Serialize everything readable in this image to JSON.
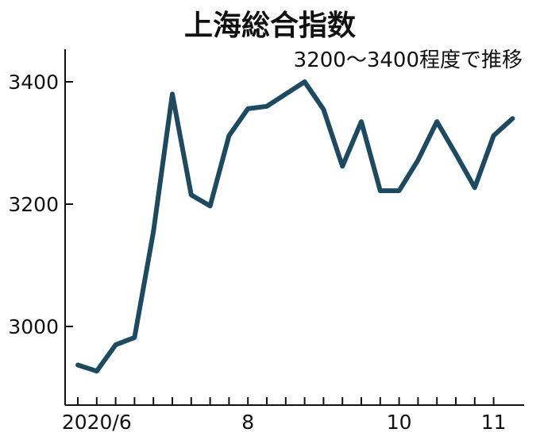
{
  "chart_data": {
    "type": "line",
    "title": "上海総合指数",
    "subtitle": "3200～3400程度で推移",
    "ylim": [
      2880,
      3440
    ],
    "yticks": [
      3000,
      3200,
      3400
    ],
    "ytick_labels": [
      "3000",
      "3200",
      "3400"
    ],
    "xtick_labels": [
      {
        "label": "2020/6",
        "index": 1
      },
      {
        "label": "8",
        "index": 9
      },
      {
        "label": "10",
        "index": 17
      },
      {
        "label": "11",
        "index": 22
      }
    ],
    "minor_tick_indices": [
      0,
      1,
      2,
      3,
      4,
      5,
      6,
      7,
      8,
      9,
      10,
      11,
      12,
      13,
      14,
      15,
      16,
      17,
      18,
      19,
      20,
      21,
      22
    ],
    "grid": false,
    "line_color": "#1c4a60",
    "series": [
      {
        "values": [
          2937,
          2927,
          2970,
          2982,
          3155,
          3380,
          3215,
          3197,
          3312,
          3356,
          3360,
          3380,
          3400,
          3355,
          3262,
          3335,
          3222,
          3222,
          3272,
          3335,
          3282,
          3227,
          3312,
          3340
        ]
      }
    ]
  }
}
